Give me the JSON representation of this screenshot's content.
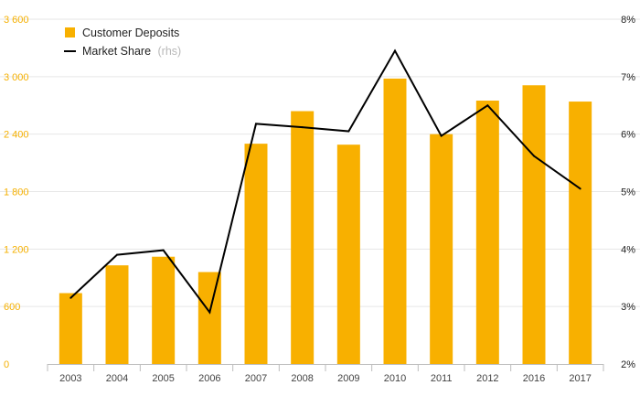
{
  "chart_data": {
    "type": "bar",
    "categories": [
      "2003",
      "2004",
      "2005",
      "2006",
      "2007",
      "2008",
      "2009",
      "2010",
      "2011",
      "2012",
      "2016",
      "2017"
    ],
    "series": [
      {
        "name": "Customer Deposits",
        "type": "bar",
        "axis": "left",
        "color": "#f8b000",
        "values": [
          740,
          1030,
          1120,
          960,
          2300,
          2640,
          2290,
          2980,
          2400,
          2750,
          2910,
          2740
        ]
      },
      {
        "name": "Market Share",
        "name_note": "(rhs)",
        "type": "line",
        "axis": "right",
        "color": "#000000",
        "values": [
          3.15,
          3.9,
          3.98,
          2.9,
          6.18,
          6.12,
          6.05,
          7.45,
          5.97,
          6.5,
          5.62,
          5.05
        ]
      }
    ],
    "y_left": {
      "min": 0,
      "max": 3600,
      "ticks": [
        "0",
        "600",
        "1 200",
        "1 800",
        "2 400",
        "3 000",
        "3 600"
      ]
    },
    "y_right": {
      "min": 2,
      "max": 8,
      "ticks": [
        "2%",
        "3%",
        "4%",
        "5%",
        "6%",
        "7%",
        "8%"
      ]
    },
    "grid": true,
    "legend_position": "top-left",
    "title": "",
    "xlabel": "",
    "ylabel": ""
  }
}
